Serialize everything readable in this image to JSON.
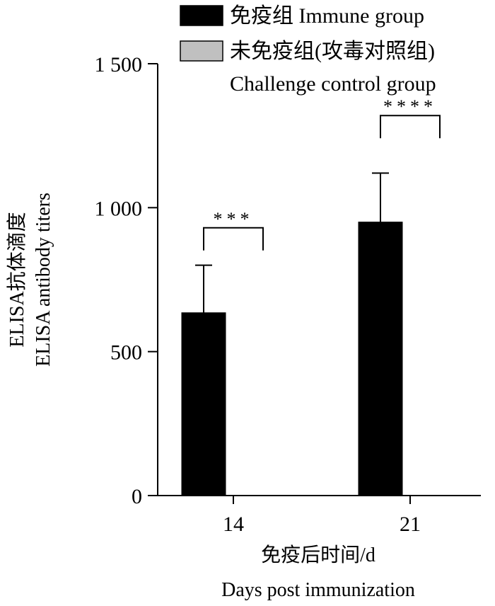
{
  "chart_data": {
    "type": "bar",
    "categories": [
      "14",
      "21"
    ],
    "series": [
      {
        "name": "免疫组 Immune group",
        "name_lines": [
          "免疫组 Immune group"
        ],
        "values": [
          635,
          950
        ],
        "errors": [
          165,
          170
        ],
        "color": "#000000"
      },
      {
        "name": "未免疫组(攻毒对照组) Challenge control group",
        "name_lines": [
          "未免疫组(攻毒对照组)",
          "Challenge control group"
        ],
        "values": [
          0,
          0
        ],
        "errors": [
          0,
          0
        ],
        "color": "#c0c0c0"
      }
    ],
    "ylim": [
      0,
      1500
    ],
    "yticks": [
      0,
      500,
      1000,
      1500
    ],
    "ytick_labels": [
      "0",
      "500",
      "1 000",
      "1 500"
    ],
    "ylabel_lines": [
      "ELISA抗体滴度",
      "ELISA antibody titers"
    ],
    "xlabel_lines": [
      "免疫后时间/d",
      "Days post immunization"
    ],
    "significance": [
      {
        "category": "14",
        "label": "***",
        "y": 930
      },
      {
        "category": "21",
        "label": "****",
        "y": 1320
      }
    ],
    "legend_position": "top-right",
    "grid": false
  }
}
